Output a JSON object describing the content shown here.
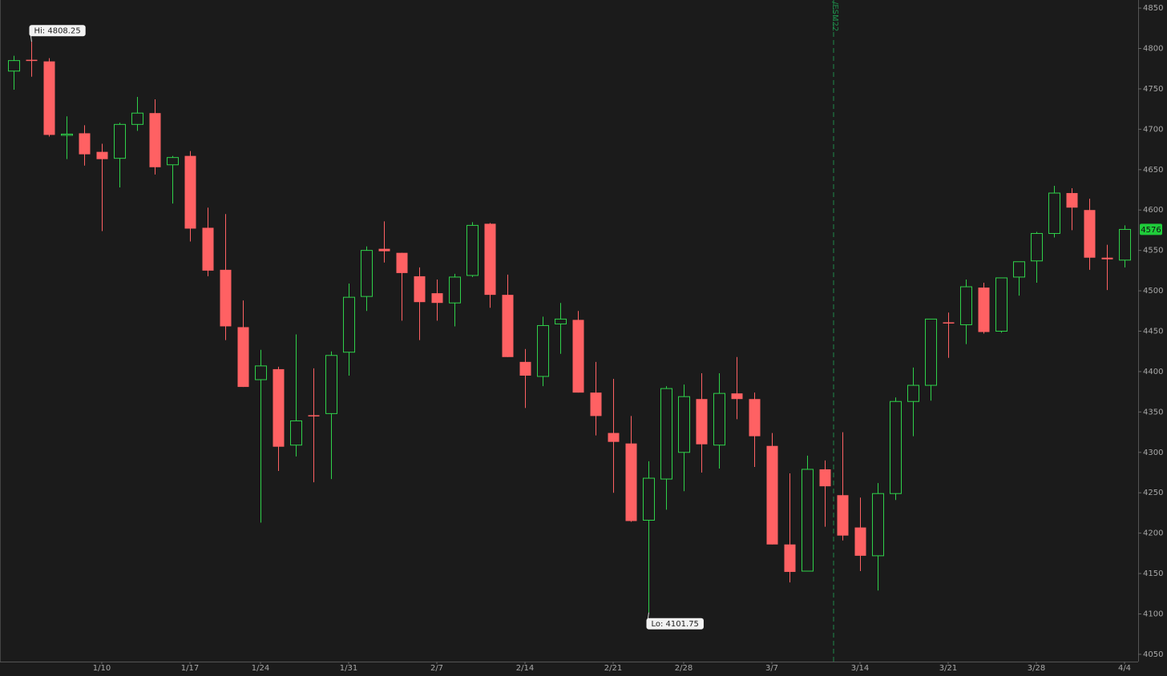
{
  "chart_data": {
    "type": "candlestick",
    "categories": [
      null,
      null,
      null,
      null,
      null,
      "1/10",
      null,
      null,
      null,
      null,
      "1/17",
      null,
      null,
      null,
      "1/24",
      null,
      null,
      null,
      null,
      "1/31",
      null,
      null,
      null,
      null,
      "2/7",
      null,
      null,
      null,
      null,
      "2/14",
      null,
      null,
      null,
      null,
      "2/21",
      null,
      null,
      null,
      "2/28",
      null,
      null,
      null,
      null,
      "3/7",
      null,
      null,
      null,
      null,
      "3/14",
      null,
      null,
      null,
      null,
      "3/21",
      null,
      null,
      null,
      null,
      "3/28",
      null,
      null,
      null,
      null,
      "4/4"
    ],
    "open": [
      4772,
      4786,
      4784,
      4693,
      4695,
      4672,
      4664,
      4706,
      4720,
      4656,
      4667,
      4578,
      4526,
      4455,
      4390,
      4403,
      4309,
      4346,
      4348,
      4424,
      4493,
      4552,
      4547,
      4518,
      4497,
      4485,
      4519,
      4583,
      4495,
      4412,
      4394,
      4459,
      4464,
      4374,
      4324,
      4311,
      4216,
      4267,
      4300,
      4366,
      4309,
      4373,
      4366,
      4308,
      4186,
      4153,
      4279,
      4247,
      4207,
      4172,
      4249,
      4363,
      4383,
      4461,
      4458,
      4504,
      4450,
      4517,
      4537,
      4571,
      4621,
      4600,
      4541,
      4538
    ],
    "high": [
      4791,
      4808.25,
      4788,
      4716,
      4705,
      4682,
      4708,
      4740,
      4737,
      4667,
      4673,
      4603,
      4595,
      4488,
      4427,
      4406,
      4446,
      4404,
      4425,
      4509,
      4555,
      4586,
      4547,
      4529,
      4514,
      4521,
      4585,
      4584,
      4520,
      4428,
      4468,
      4485,
      4475,
      4412,
      4391,
      4345,
      4289,
      4382,
      4384,
      4398,
      4398,
      4418,
      4374,
      4324,
      4274,
      4296,
      4290,
      4325,
      4244,
      4262,
      4368,
      4405,
      4465,
      4473,
      4514,
      4510,
      4516,
      4536,
      4573,
      4630,
      4627,
      4614,
      4557,
      4581
    ],
    "low": [
      4749,
      4765,
      4691,
      4663,
      4655,
      4574,
      4628,
      4698,
      4644,
      4608,
      4561,
      4518,
      4439,
      4381,
      4213,
      4277,
      4295,
      4263,
      4267,
      4395,
      4475,
      4535,
      4463,
      4439,
      4463,
      4456,
      4517,
      4479,
      4418,
      4355,
      4382,
      4422,
      4374,
      4321,
      4250,
      4214,
      4101.75,
      4229,
      4252,
      4275,
      4280,
      4341,
      4282,
      4186,
      4139,
      4153,
      4208,
      4191,
      4153,
      4129,
      4241,
      4320,
      4364,
      4417,
      4434,
      4447,
      4448,
      4494,
      4510,
      4566,
      4575,
      4526,
      4501,
      4529
    ],
    "close": [
      4785,
      4785,
      4693,
      4694,
      4669,
      4663,
      4706,
      4720,
      4653,
      4665,
      4577,
      4525,
      4456,
      4381,
      4407,
      4307,
      4339,
      4345,
      4420,
      4492,
      4550,
      4549,
      4522,
      4486,
      4485,
      4517,
      4581,
      4495,
      4418,
      4395,
      4457,
      4465,
      4374,
      4345,
      4313,
      4215,
      4268,
      4379,
      4369,
      4310,
      4373,
      4366,
      4320,
      4186,
      4152,
      4279,
      4258,
      4197,
      4172,
      4249,
      4363,
      4383,
      4465,
      4460,
      4505,
      4449,
      4516,
      4536,
      4571,
      4621,
      4603,
      4541,
      4539,
      4576
    ],
    "up_color": "#2fd14a",
    "down_color": "#ff6163",
    "hi_label": "Hi: 4808.25",
    "lo_label": "Lo: 4101.75",
    "contract_label": "/ESM22",
    "ylim": [
      4041,
      4860
    ],
    "yticks": [
      4050,
      4100,
      4150,
      4200,
      4250,
      4300,
      4350,
      4400,
      4450,
      4500,
      4550,
      4600,
      4650,
      4700,
      4750,
      4800,
      4850
    ]
  }
}
